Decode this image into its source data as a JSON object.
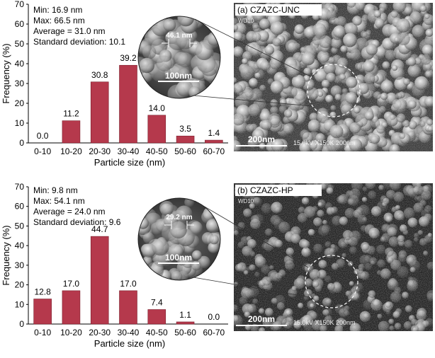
{
  "chart_data": [
    {
      "type": "bar",
      "panel_label": "(a) CZAZC-UNC",
      "categories": [
        "0-10",
        "10-20",
        "20-30",
        "30-40",
        "40-50",
        "50-60",
        "60-70"
      ],
      "values": [
        0.0,
        11.2,
        30.8,
        39.2,
        14.0,
        3.5,
        1.4
      ],
      "value_labels": [
        "0.0",
        "11.2",
        "30.8",
        "39.2",
        "14.0",
        "3.5",
        "1.4"
      ],
      "xlabel": "Particle size (nm)",
      "ylabel": "Frequency (%)",
      "ylim": [
        0,
        70
      ],
      "yticks": [
        "0",
        "10",
        "20",
        "30",
        "40",
        "50",
        "60",
        "70"
      ],
      "stats": [
        "Min: 16.9 nm",
        "Max: 66.5 nm",
        "Average = 31.0 nm",
        "Standard deviation: 10.1"
      ],
      "inset_measure": "46.1 nm",
      "inset_scale": "100nm",
      "sem_scale": "200nm",
      "sem_info": "15.0kV  X150K  200nm",
      "sem_wd": "WD10",
      "bar_color": "#b5394c"
    },
    {
      "type": "bar",
      "panel_label": "(b) CZAZC-HP",
      "categories": [
        "0-10",
        "10-20",
        "20-30",
        "30-40",
        "40-50",
        "50-60",
        "60-70"
      ],
      "values": [
        12.8,
        17.0,
        44.7,
        17.0,
        7.4,
        1.1,
        0.0
      ],
      "value_labels": [
        "12.8",
        "17.0",
        "44.7",
        "17.0",
        "7.4",
        "1.1",
        "0.0"
      ],
      "xlabel": "Particle size (nm)",
      "ylabel": "Frequency (%)",
      "ylim": [
        0,
        70
      ],
      "yticks": [
        "0",
        "10",
        "20",
        "30",
        "40",
        "50",
        "60",
        "70"
      ],
      "stats": [
        "Min: 9.8 nm",
        "Max: 54.1 nm",
        "Average = 24.0 nm",
        "Standard deviation: 9.6"
      ],
      "inset_measure": "29.2 nm",
      "inset_scale": "100nm",
      "sem_scale": "200nm",
      "sem_info": "15.0kV  X150K  200nm",
      "sem_wd": "WD10",
      "bar_color": "#b5394c"
    }
  ]
}
